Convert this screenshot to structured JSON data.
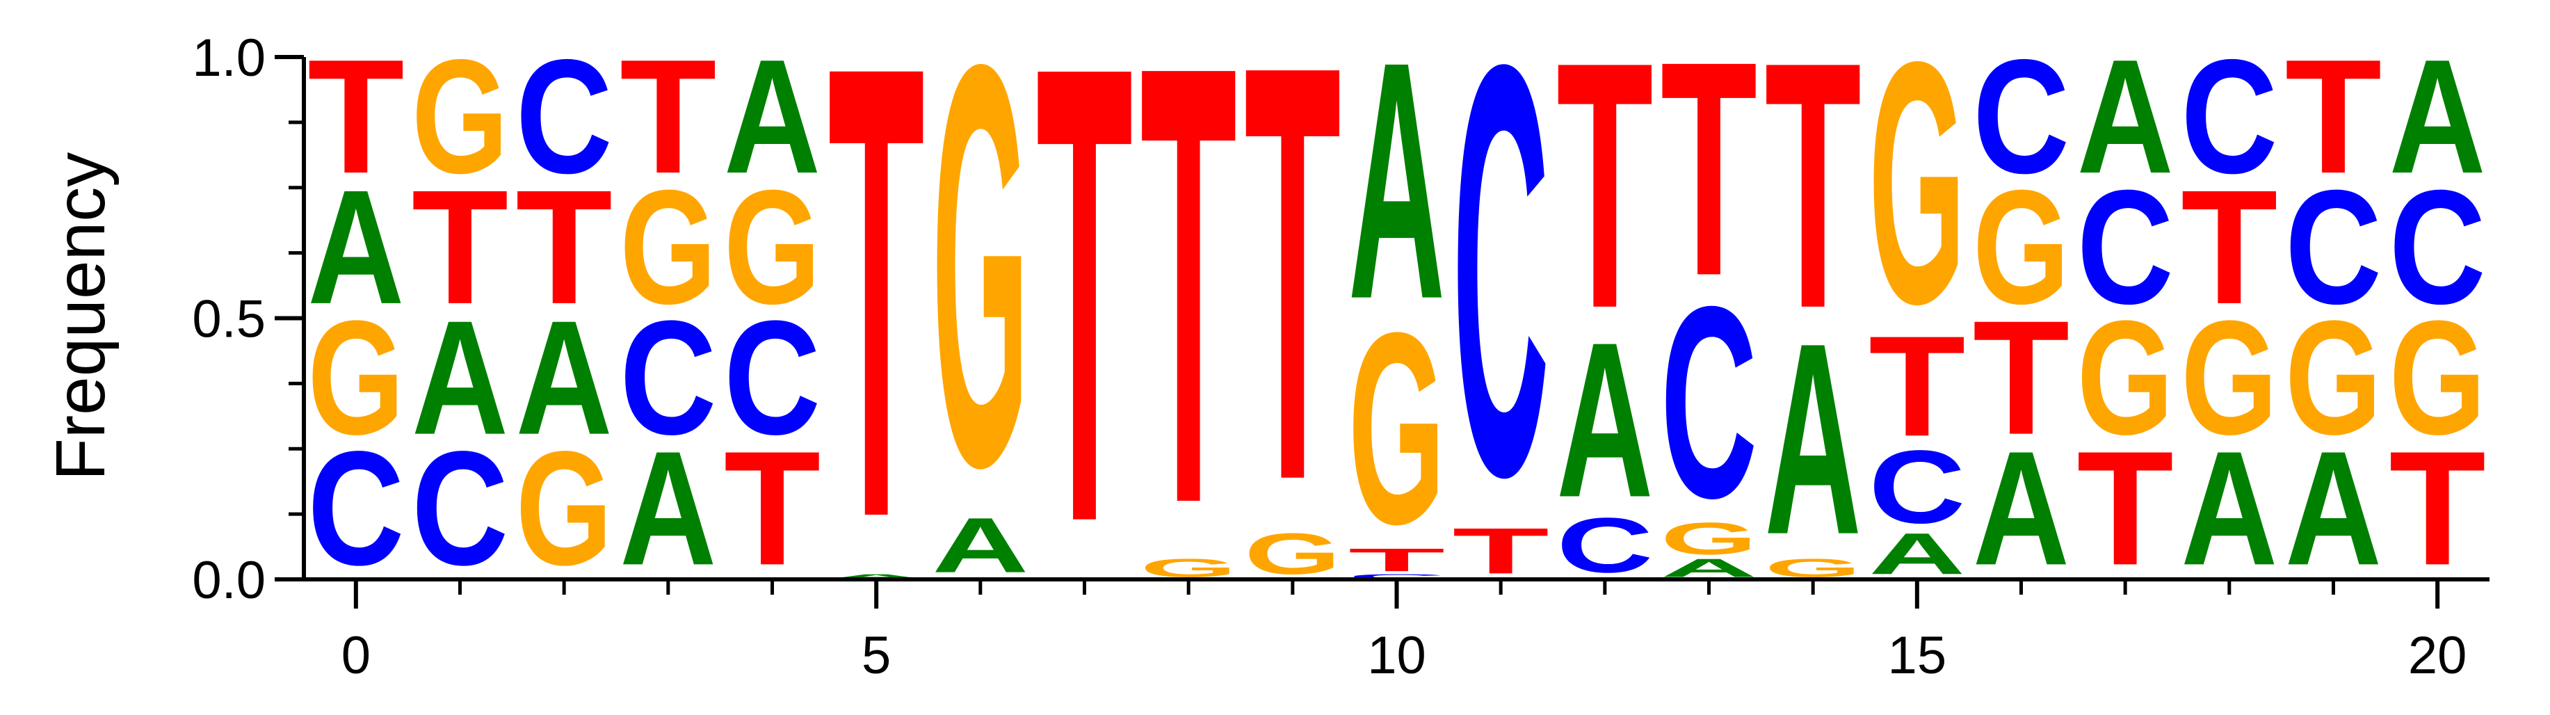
{
  "chart_data": {
    "type": "sequence-logo",
    "ylabel": "Frequency",
    "xlim": [
      -0.5,
      20.5
    ],
    "ylim": [
      0,
      1
    ],
    "x_ticks": [
      0,
      5,
      10,
      15,
      20
    ],
    "x_minor_ticks": [
      1,
      2,
      3,
      4,
      6,
      7,
      8,
      9,
      11,
      12,
      13,
      14,
      16,
      17,
      18,
      19
    ],
    "y_ticks": [
      0.0,
      0.5,
      1.0
    ],
    "y_tick_labels": [
      "0.0",
      "0.5",
      "1.0"
    ],
    "y_minor_ticks": [
      0.125,
      0.25,
      0.375,
      0.625,
      0.75,
      0.875
    ],
    "colors": {
      "A": "#008000",
      "C": "#0000ff",
      "G": "#ffa500",
      "T": "#ff0000"
    },
    "positions": [
      {
        "pos": 0,
        "stack": [
          [
            "C",
            0.25
          ],
          [
            "G",
            0.25
          ],
          [
            "A",
            0.25
          ],
          [
            "T",
            0.25
          ]
        ]
      },
      {
        "pos": 1,
        "stack": [
          [
            "C",
            0.25
          ],
          [
            "A",
            0.25
          ],
          [
            "T",
            0.25
          ],
          [
            "G",
            0.25
          ]
        ]
      },
      {
        "pos": 2,
        "stack": [
          [
            "G",
            0.25
          ],
          [
            "A",
            0.25
          ],
          [
            "T",
            0.25
          ],
          [
            "C",
            0.25
          ]
        ]
      },
      {
        "pos": 3,
        "stack": [
          [
            "A",
            0.25
          ],
          [
            "C",
            0.25
          ],
          [
            "G",
            0.25
          ],
          [
            "T",
            0.25
          ]
        ]
      },
      {
        "pos": 4,
        "stack": [
          [
            "T",
            0.25
          ],
          [
            "C",
            0.25
          ],
          [
            "G",
            0.25
          ],
          [
            "A",
            0.25
          ]
        ]
      },
      {
        "pos": 5,
        "stack": [
          [
            "A",
            0.01
          ],
          [
            "T",
            0.99
          ]
        ]
      },
      {
        "pos": 6,
        "stack": [
          [
            "A",
            0.12
          ],
          [
            "G",
            0.88
          ]
        ]
      },
      {
        "pos": 7,
        "stack": [
          [
            "T",
            1.0
          ]
        ]
      },
      {
        "pos": 8,
        "stack": [
          [
            "G",
            0.04
          ],
          [
            "T",
            0.96
          ]
        ]
      },
      {
        "pos": 9,
        "stack": [
          [
            "G",
            0.09
          ],
          [
            "T",
            0.91
          ]
        ]
      },
      {
        "pos": 10,
        "stack": [
          [
            "C",
            0.01
          ],
          [
            "T",
            0.05
          ],
          [
            "G",
            0.42
          ],
          [
            "A",
            0.52
          ]
        ]
      },
      {
        "pos": 11,
        "stack": [
          [
            "T",
            0.1
          ],
          [
            "C",
            0.9
          ]
        ]
      },
      {
        "pos": 12,
        "stack": [
          [
            "C",
            0.12
          ],
          [
            "A",
            0.34
          ],
          [
            "T",
            0.54
          ]
        ]
      },
      {
        "pos": 13,
        "stack": [
          [
            "A",
            0.04
          ],
          [
            "G",
            0.07
          ],
          [
            "C",
            0.42
          ],
          [
            "T",
            0.47
          ]
        ]
      },
      {
        "pos": 14,
        "stack": [
          [
            "G",
            0.04
          ],
          [
            "A",
            0.42
          ],
          [
            "T",
            0.54
          ]
        ]
      },
      {
        "pos": 15,
        "stack": [
          [
            "A",
            0.09
          ],
          [
            "C",
            0.16
          ],
          [
            "T",
            0.22
          ],
          [
            "G",
            0.53
          ]
        ]
      },
      {
        "pos": 16,
        "stack": [
          [
            "A",
            0.25
          ],
          [
            "T",
            0.25
          ],
          [
            "G",
            0.25
          ],
          [
            "C",
            0.25
          ]
        ]
      },
      {
        "pos": 17,
        "stack": [
          [
            "T",
            0.25
          ],
          [
            "G",
            0.25
          ],
          [
            "C",
            0.25
          ],
          [
            "A",
            0.25
          ]
        ]
      },
      {
        "pos": 18,
        "stack": [
          [
            "A",
            0.25
          ],
          [
            "G",
            0.25
          ],
          [
            "T",
            0.25
          ],
          [
            "C",
            0.25
          ]
        ]
      },
      {
        "pos": 19,
        "stack": [
          [
            "A",
            0.25
          ],
          [
            "G",
            0.25
          ],
          [
            "C",
            0.25
          ],
          [
            "T",
            0.25
          ]
        ]
      },
      {
        "pos": 20,
        "stack": [
          [
            "T",
            0.25
          ],
          [
            "G",
            0.25
          ],
          [
            "C",
            0.25
          ],
          [
            "A",
            0.25
          ]
        ]
      }
    ]
  }
}
